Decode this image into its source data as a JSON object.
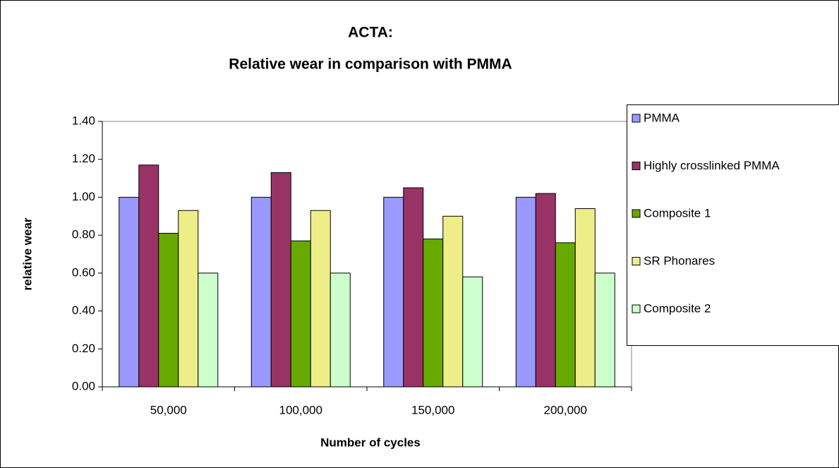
{
  "chart_data": {
    "type": "bar",
    "title": "ACTA:",
    "subtitle": "Relative wear in comparison with PMMA",
    "x_label": "Number of cycles",
    "y_label": "relative wear",
    "categories": [
      "50,000",
      "100,000",
      "150,000",
      "200,000"
    ],
    "series": [
      {
        "name": "PMMA",
        "color": "#9999ff",
        "values": [
          1.0,
          1.0,
          1.0,
          1.0
        ]
      },
      {
        "name": "Highly crosslinked PMMA",
        "color": "#993366",
        "values": [
          1.17,
          1.13,
          1.05,
          1.02
        ]
      },
      {
        "name": "Composite 1",
        "color": "#66aa00",
        "values": [
          0.81,
          0.77,
          0.78,
          0.76
        ]
      },
      {
        "name": "SR Phonares",
        "color": "#eeee88",
        "values": [
          0.93,
          0.93,
          0.9,
          0.94
        ]
      },
      {
        "name": "Composite 2",
        "color": "#ccffcc",
        "values": [
          0.6,
          0.6,
          0.58,
          0.6
        ]
      }
    ],
    "ylim": [
      0,
      1.4
    ],
    "yticks": [
      {
        "value": 0,
        "label": "0.00"
      },
      {
        "value": 0.2,
        "label": "0.20"
      },
      {
        "value": 0.4,
        "label": "0.40"
      },
      {
        "value": 0.6,
        "label": "0.60"
      },
      {
        "value": 0.8,
        "label": "0.80"
      },
      {
        "value": 1.0,
        "label": "1.00"
      },
      {
        "value": 1.2,
        "label": "1.20"
      },
      {
        "value": 1.4,
        "label": "1.40"
      }
    ],
    "grid": false,
    "legend": "right"
  }
}
